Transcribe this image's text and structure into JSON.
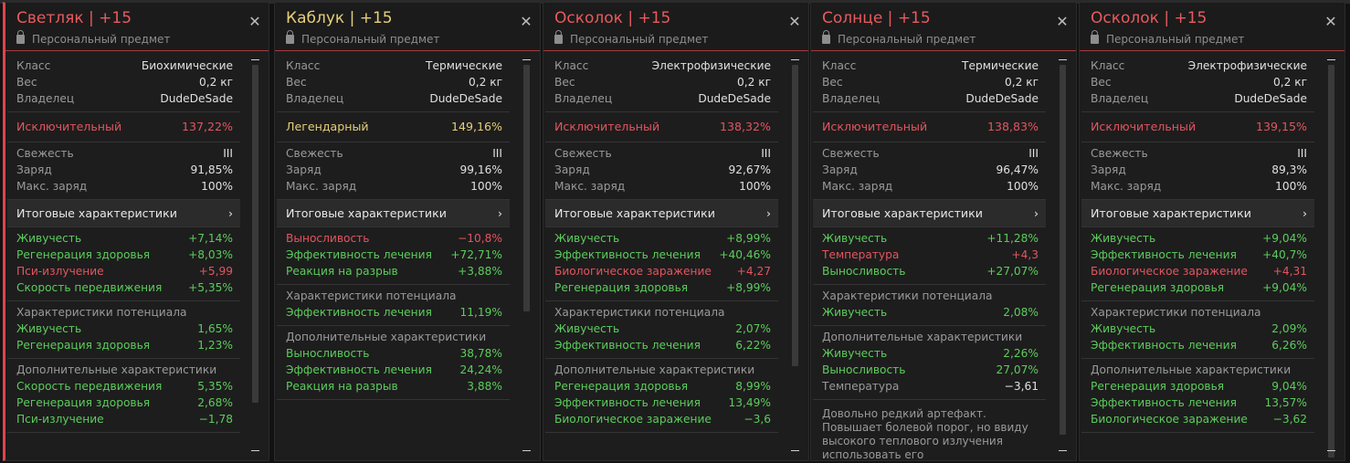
{
  "common": {
    "personal_label": "Персональный предмет",
    "totals_label": "Итоговые характеристики"
  },
  "cards": [
    {
      "title": "Светляк | +15",
      "meta": [
        {
          "label": "Класс",
          "value": "Биохимические"
        },
        {
          "label": "Вес",
          "value": "0,2 кг"
        },
        {
          "label": "Владелец",
          "value": "DudeDeSade"
        }
      ],
      "rarity": {
        "label": "Исключительный",
        "value": "137,22%",
        "color": "red"
      },
      "state": [
        {
          "label": "Свежесть",
          "value": "III"
        },
        {
          "label": "Заряд",
          "value": "91,85%"
        },
        {
          "label": "Макс. заряд",
          "value": "100%"
        }
      ],
      "totals": [
        {
          "label": "Живучесть",
          "value": "+7,14%",
          "color": "green"
        },
        {
          "label": "Регенерация здоровья",
          "value": "+8,03%",
          "color": "green"
        },
        {
          "label": "Пси-излучение",
          "value": "+5,99",
          "color": "red"
        },
        {
          "label": "Скорость передвижения",
          "value": "+5,35%",
          "color": "green"
        }
      ],
      "potential_title": "Характеристики потенциала",
      "potential": [
        {
          "label": "Живучесть",
          "value": "1,65%"
        },
        {
          "label": "Регенерация здоровья",
          "value": "1,23%"
        }
      ],
      "extra_title": "Дополнительные характеристики",
      "extra": [
        {
          "label": "Скорость передвижения",
          "value": "5,35%"
        },
        {
          "label": "Регенерация здоровья",
          "value": "2,68%"
        },
        {
          "label": "Пси-излучение",
          "value": "−1,78"
        }
      ],
      "description": ""
    },
    {
      "title": "Каблук | +15",
      "meta": [
        {
          "label": "Класс",
          "value": "Термические"
        },
        {
          "label": "Вес",
          "value": "0,2 кг"
        },
        {
          "label": "Владелец",
          "value": "DudeDeSade"
        }
      ],
      "rarity": {
        "label": "Легендарный",
        "value": "149,16%",
        "color": "yellow"
      },
      "state": [
        {
          "label": "Свежесть",
          "value": "III"
        },
        {
          "label": "Заряд",
          "value": "99,16%"
        },
        {
          "label": "Макс. заряд",
          "value": "100%"
        }
      ],
      "totals": [
        {
          "label": "Выносливость",
          "value": "−10,8%",
          "color": "red"
        },
        {
          "label": "Эффективность лечения",
          "value": "+72,71%",
          "color": "green"
        },
        {
          "label": "Реакция на разрыв",
          "value": "+3,88%",
          "color": "green"
        }
      ],
      "potential_title": "Характеристики потенциала",
      "potential": [
        {
          "label": "Эффективность лечения",
          "value": "11,19%"
        }
      ],
      "extra_title": "Дополнительные характеристики",
      "extra": [
        {
          "label": "Выносливость",
          "value": "38,78%"
        },
        {
          "label": "Эффективность лечения",
          "value": "24,24%"
        },
        {
          "label": "Реакция на разрыв",
          "value": "3,88%"
        }
      ],
      "description": ""
    },
    {
      "title": "Осколок | +15",
      "meta": [
        {
          "label": "Класс",
          "value": "Электрофизические"
        },
        {
          "label": "Вес",
          "value": "0,2 кг"
        },
        {
          "label": "Владелец",
          "value": "DudeDeSade"
        }
      ],
      "rarity": {
        "label": "Исключительный",
        "value": "138,32%",
        "color": "red"
      },
      "state": [
        {
          "label": "Свежесть",
          "value": "III"
        },
        {
          "label": "Заряд",
          "value": "92,67%"
        },
        {
          "label": "Макс. заряд",
          "value": "100%"
        }
      ],
      "totals": [
        {
          "label": "Живучесть",
          "value": "+8,99%",
          "color": "green"
        },
        {
          "label": "Эффективность лечения",
          "value": "+40,46%",
          "color": "green"
        },
        {
          "label": "Биологическое заражение",
          "value": "+4,27",
          "color": "red"
        },
        {
          "label": "Регенерация здоровья",
          "value": "+8,99%",
          "color": "green"
        }
      ],
      "potential_title": "Характеристики потенциала",
      "potential": [
        {
          "label": "Живучесть",
          "value": "2,07%"
        },
        {
          "label": "Эффективность лечения",
          "value": "6,22%"
        }
      ],
      "extra_title": "Дополнительные характеристики",
      "extra": [
        {
          "label": "Регенерация здоровья",
          "value": "8,99%"
        },
        {
          "label": "Эффективность лечения",
          "value": "13,49%"
        },
        {
          "label": "Биологическое заражение",
          "value": "−3,6"
        }
      ],
      "description": ""
    },
    {
      "title": "Солнце | +15",
      "meta": [
        {
          "label": "Класс",
          "value": "Термические"
        },
        {
          "label": "Вес",
          "value": "0,2 кг"
        },
        {
          "label": "Владелец",
          "value": "DudeDeSade"
        }
      ],
      "rarity": {
        "label": "Исключительный",
        "value": "138,83%",
        "color": "red"
      },
      "state": [
        {
          "label": "Свежесть",
          "value": "III"
        },
        {
          "label": "Заряд",
          "value": "96,47%"
        },
        {
          "label": "Макс. заряд",
          "value": "100%"
        }
      ],
      "totals": [
        {
          "label": "Живучесть",
          "value": "+11,28%",
          "color": "green"
        },
        {
          "label": "Температура",
          "value": "+4,3",
          "color": "red"
        },
        {
          "label": "Выносливость",
          "value": "+27,07%",
          "color": "green"
        }
      ],
      "potential_title": "Характеристики потенциала",
      "potential": [
        {
          "label": "Живучесть",
          "value": "2,08%"
        }
      ],
      "extra_title": "Дополнительные характеристики",
      "extra": [
        {
          "label": "Живучесть",
          "value": "2,26%"
        },
        {
          "label": "Выносливость",
          "value": "27,07%"
        },
        {
          "label": "Температура",
          "value": "−3,61",
          "plain": true
        }
      ],
      "description": "Довольно редкий артефакт. Повышает болевой порог, но ввиду высокого теплового излучения использовать его"
    },
    {
      "title": "Осколок | +15",
      "meta": [
        {
          "label": "Класс",
          "value": "Электрофизические"
        },
        {
          "label": "Вес",
          "value": "0,2 кг"
        },
        {
          "label": "Владелец",
          "value": "DudeDeSade"
        }
      ],
      "rarity": {
        "label": "Исключительный",
        "value": "139,15%",
        "color": "red"
      },
      "state": [
        {
          "label": "Свежесть",
          "value": "III"
        },
        {
          "label": "Заряд",
          "value": "89,3%"
        },
        {
          "label": "Макс. заряд",
          "value": "100%"
        }
      ],
      "totals": [
        {
          "label": "Живучесть",
          "value": "+9,04%",
          "color": "green"
        },
        {
          "label": "Эффективность лечения",
          "value": "+40,7%",
          "color": "green"
        },
        {
          "label": "Биологическое заражение",
          "value": "+4,31",
          "color": "red"
        },
        {
          "label": "Регенерация здоровья",
          "value": "+9,04%",
          "color": "green"
        }
      ],
      "potential_title": "Характеристики потенциала",
      "potential": [
        {
          "label": "Живучесть",
          "value": "2,09%"
        },
        {
          "label": "Эффективность лечения",
          "value": "6,26%"
        }
      ],
      "extra_title": "Дополнительные характеристики",
      "extra": [
        {
          "label": "Регенерация здоровья",
          "value": "9,04%"
        },
        {
          "label": "Эффективность лечения",
          "value": "13,57%"
        },
        {
          "label": "Биологическое заражение",
          "value": "−3,62"
        }
      ],
      "description": ""
    }
  ],
  "colors": {
    "red": "#e25560",
    "green": "#5ccc5c",
    "yellow": "#e6cf7a",
    "accent_border": "#a53a3e"
  },
  "icons": {
    "close": "close-icon",
    "lock": "lock-icon",
    "chevron": "chevron-right-icon"
  }
}
